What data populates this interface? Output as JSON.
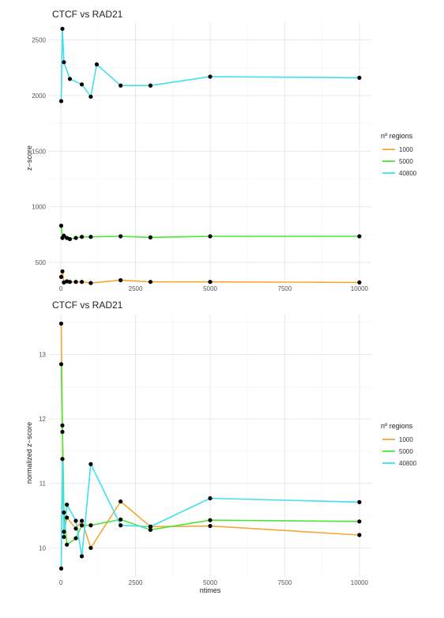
{
  "chart_data": [
    {
      "type": "line",
      "title": "CTCF vs RAD21",
      "xlabel": "",
      "ylabel": "z−score",
      "xlim": [
        -400,
        10400
      ],
      "ylim": [
        330,
        2660
      ],
      "xticks": [
        0,
        2500,
        5000,
        7500,
        10000
      ],
      "xtick_labels": [
        "0",
        "2500",
        "5000",
        "7500",
        "10000"
      ],
      "yticks": [
        500,
        1000,
        1500,
        2000,
        2500
      ],
      "ytick_labels": [
        "500",
        "1000",
        "1500",
        "2000",
        "2500"
      ],
      "grid": true,
      "legend_title": "nº regions",
      "legend_position": "right",
      "series": [
        {
          "name": "1000",
          "color": "#F7A833",
          "x": [
            10,
            50,
            100,
            200,
            300,
            500,
            700,
            1000,
            2000,
            3000,
            5000,
            10000
          ],
          "y": [
            370,
            420,
            320,
            330,
            325,
            325,
            325,
            315,
            340,
            325,
            325,
            320
          ]
        },
        {
          "name": "5000",
          "color": "#4DE43A",
          "x": [
            10,
            50,
            100,
            200,
            300,
            500,
            700,
            1000,
            2000,
            3000,
            5000,
            10000
          ],
          "y": [
            830,
            720,
            740,
            720,
            710,
            720,
            730,
            730,
            735,
            725,
            735,
            735
          ]
        },
        {
          "name": "40800",
          "color": "#3FE0F0",
          "x": [
            10,
            50,
            100,
            300,
            700,
            1000,
            1200,
            2000,
            3000,
            5000,
            10000
          ],
          "y": [
            1950,
            2600,
            2300,
            2150,
            2100,
            1990,
            2280,
            2090,
            2090,
            2170,
            2160
          ]
        }
      ]
    },
    {
      "type": "line",
      "title": "CTCF vs RAD21",
      "xlabel": "ntimes",
      "ylabel": "normalized z−score",
      "xlim": [
        -400,
        10400
      ],
      "ylim": [
        9.55,
        13.62
      ],
      "xticks": [
        0,
        2500,
        5000,
        7500,
        10000
      ],
      "xtick_labels": [
        "0",
        "2500",
        "5000",
        "7500",
        "10000"
      ],
      "yticks": [
        10,
        11,
        12,
        13
      ],
      "ytick_labels": [
        "10",
        "11",
        "12",
        "13"
      ],
      "grid": true,
      "legend_title": "nº regions",
      "legend_position": "right",
      "series": [
        {
          "name": "1000",
          "color": "#F7A833",
          "x": [
            10,
            50,
            100,
            200,
            500,
            700,
            1000,
            2000,
            3000,
            5000,
            10000
          ],
          "y": [
            13.48,
            11.8,
            10.25,
            10.47,
            10.3,
            10.42,
            10.0,
            10.72,
            10.33,
            10.34,
            10.2
          ]
        },
        {
          "name": "5000",
          "color": "#4DE43A",
          "x": [
            10,
            50,
            100,
            200,
            500,
            700,
            1000,
            2000,
            3000,
            5000,
            10000
          ],
          "y": [
            12.85,
            11.9,
            10.55,
            10.05,
            10.15,
            10.35,
            10.35,
            10.44,
            10.28,
            10.43,
            10.41
          ]
        },
        {
          "name": "40800",
          "color": "#3FE0F0",
          "x": [
            10,
            50,
            100,
            200,
            500,
            700,
            1000,
            2000,
            3000,
            5000,
            10000
          ],
          "y": [
            9.68,
            11.38,
            10.17,
            10.67,
            10.42,
            9.87,
            11.3,
            10.35,
            10.33,
            10.77,
            10.71
          ]
        }
      ]
    }
  ]
}
